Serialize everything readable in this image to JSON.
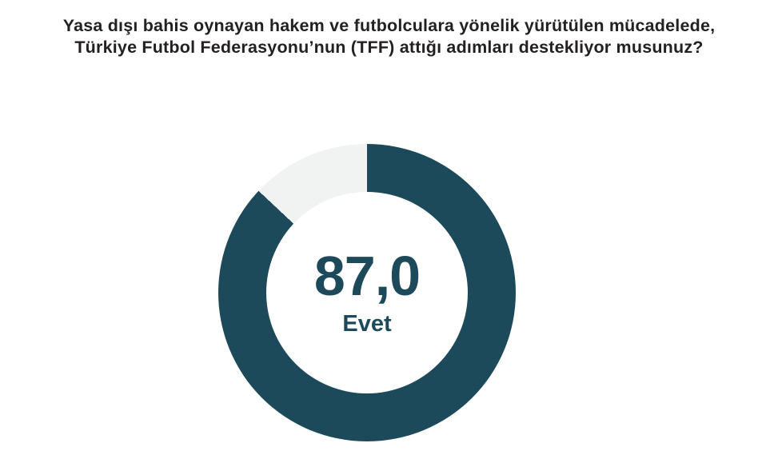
{
  "title": {
    "line1": "Yasa dışı bahis oynayan hakem ve futbolculara yönelik yürütülen mücadelede,",
    "line2": "Türkiye Futbol Federasyonu’nun (TFF) attığı adımları destekliyor musunuz?"
  },
  "chart_data": {
    "type": "pie",
    "subtype": "donut",
    "title_line1": "Yasa dışı bahis oynayan hakem ve futbolculara yönelik yürütülen mücadelede,",
    "title_line2": "Türkiye Futbol Federasyonu’nun (TFF) attığı adımları destekliyor musunuz?",
    "slices": [
      {
        "label": "Evet",
        "value": 87.0,
        "color": "#1c4a5a"
      },
      {
        "label": "",
        "value": 13.0,
        "color": "#f1f2f2"
      }
    ],
    "start_angle_deg": 0,
    "direction": "clockwise",
    "hole_ratio": 0.68,
    "legend": "none",
    "center_value_label": "87,0",
    "center_category_label": "Evet"
  },
  "colors": {
    "accent_teal": "#1c4a5a",
    "remainder_gray": "#f1f2f2",
    "title_text": "#241f20",
    "background": "#ffffff"
  }
}
